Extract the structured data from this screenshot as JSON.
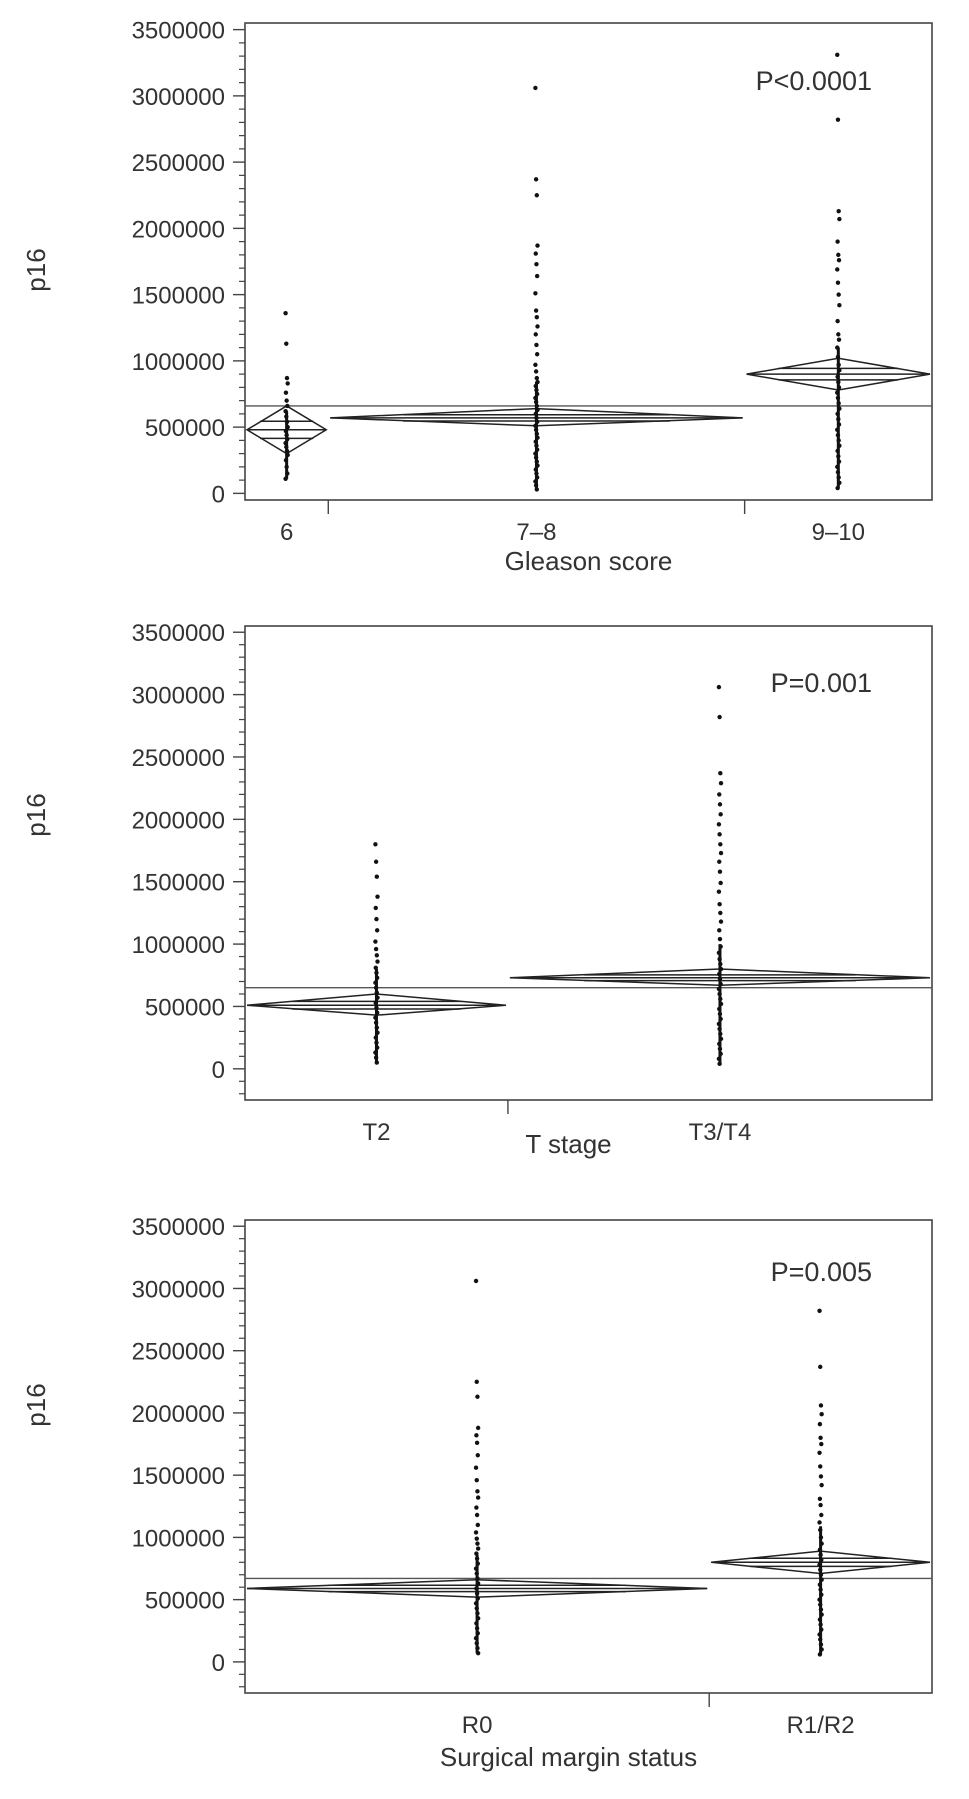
{
  "chart_data": [
    {
      "type": "scatter",
      "subtype": "one-way means diamonds with jittered points",
      "xlabel": "Gleason score",
      "ylabel": "p16",
      "ylim": [
        -50000,
        3550000
      ],
      "yticks": [
        0,
        500000,
        1000000,
        1500000,
        2000000,
        2500000,
        3000000,
        3500000
      ],
      "yticklabels": [
        "0",
        "500000",
        "1000000",
        "1500000",
        "2000000",
        "2500000",
        "3000000",
        "3500000"
      ],
      "annotation": "P<0.0001",
      "grand_mean": 660000,
      "categories": [
        "6",
        "7–8",
        "9–10"
      ],
      "category_widths": [
        0.2,
        1.0,
        0.45
      ],
      "groups": [
        {
          "name": "6",
          "mean": 480000,
          "ci": [
            300000,
            660000
          ],
          "values": [
            1360000,
            1130000,
            870000,
            830000,
            760000,
            700000,
            660000,
            620000,
            580000,
            540000,
            500000,
            470000,
            440000,
            410000,
            380000,
            350000,
            320000,
            290000,
            250000,
            200000,
            150000,
            110000
          ]
        },
        {
          "name": "7–8",
          "mean": 570000,
          "ci": [
            510000,
            640000
          ],
          "values": [
            3060000,
            2370000,
            2250000,
            1870000,
            1810000,
            1730000,
            1640000,
            1510000,
            1380000,
            1330000,
            1260000,
            1200000,
            1120000,
            1050000,
            970000,
            920000,
            870000,
            840000,
            810000,
            780000,
            750000,
            720000,
            690000,
            660000,
            630000,
            600000,
            570000,
            540000,
            510000,
            480000,
            450000,
            420000,
            390000,
            360000,
            330000,
            300000,
            270000,
            240000,
            210000,
            180000,
            150000,
            120000,
            90000,
            60000,
            30000
          ]
        },
        {
          "name": "9–10",
          "mean": 900000,
          "ci": [
            780000,
            1020000
          ],
          "values": [
            3310000,
            2820000,
            2130000,
            2070000,
            1900000,
            1800000,
            1760000,
            1690000,
            1590000,
            1500000,
            1420000,
            1300000,
            1200000,
            1160000,
            1100000,
            1030000,
            970000,
            930000,
            880000,
            840000,
            800000,
            760000,
            720000,
            680000,
            640000,
            600000,
            560000,
            520000,
            480000,
            440000,
            400000,
            360000,
            320000,
            280000,
            240000,
            200000,
            160000,
            120000,
            80000,
            40000
          ]
        }
      ]
    },
    {
      "type": "scatter",
      "subtype": "one-way means diamonds with jittered points",
      "xlabel": "T stage",
      "ylabel": "p16",
      "ylim": [
        -250000,
        3550000
      ],
      "yticks": [
        0,
        500000,
        1000000,
        1500000,
        2000000,
        2500000,
        3000000,
        3500000
      ],
      "yticklabels": [
        "0",
        "500000",
        "1000000",
        "1500000",
        "2000000",
        "2500000",
        "3000000",
        "3500000"
      ],
      "annotation": "P=0.001",
      "grand_mean": 650000,
      "categories": [
        "T2",
        "T3/T4"
      ],
      "category_widths": [
        0.62,
        1.0
      ],
      "groups": [
        {
          "name": "T2",
          "mean": 510000,
          "ci": [
            430000,
            600000
          ],
          "values": [
            1800000,
            1660000,
            1540000,
            1380000,
            1290000,
            1200000,
            1110000,
            1020000,
            960000,
            910000,
            860000,
            810000,
            770000,
            730000,
            690000,
            650000,
            610000,
            570000,
            530000,
            490000,
            450000,
            410000,
            370000,
            330000,
            290000,
            250000,
            210000,
            170000,
            130000,
            90000,
            50000
          ]
        },
        {
          "name": "T3/T4",
          "mean": 730000,
          "ci": [
            670000,
            800000
          ],
          "values": [
            3060000,
            2820000,
            2370000,
            2290000,
            2200000,
            2120000,
            2040000,
            1960000,
            1880000,
            1800000,
            1730000,
            1660000,
            1580000,
            1490000,
            1420000,
            1320000,
            1250000,
            1180000,
            1110000,
            1040000,
            980000,
            930000,
            880000,
            840000,
            800000,
            760000,
            720000,
            680000,
            640000,
            600000,
            560000,
            520000,
            480000,
            440000,
            400000,
            360000,
            320000,
            280000,
            240000,
            200000,
            160000,
            120000,
            80000,
            40000
          ]
        }
      ]
    },
    {
      "type": "scatter",
      "subtype": "one-way means diamonds with jittered points",
      "xlabel": "Surgical margin status",
      "ylabel": "p16",
      "ylim": [
        -250000,
        3550000
      ],
      "yticks": [
        0,
        500000,
        1000000,
        1500000,
        2000000,
        2500000,
        3000000,
        3500000
      ],
      "yticklabels": [
        "0",
        "500000",
        "1000000",
        "1500000",
        "2000000",
        "2500000",
        "3000000",
        "3500000"
      ],
      "annotation": "P=0.005",
      "grand_mean": 670000,
      "categories": [
        "R0",
        "R1/R2"
      ],
      "category_widths": [
        1.0,
        0.48
      ],
      "groups": [
        {
          "name": "R0",
          "mean": 590000,
          "ci": [
            520000,
            660000
          ],
          "values": [
            3060000,
            2250000,
            2130000,
            1880000,
            1820000,
            1760000,
            1660000,
            1560000,
            1460000,
            1370000,
            1320000,
            1240000,
            1180000,
            1100000,
            1040000,
            990000,
            950000,
            910000,
            870000,
            830000,
            790000,
            750000,
            710000,
            670000,
            630000,
            590000,
            550000,
            510000,
            470000,
            430000,
            390000,
            350000,
            310000,
            270000,
            230000,
            190000,
            150000,
            110000,
            70000
          ]
        },
        {
          "name": "R1/R2",
          "mean": 800000,
          "ci": [
            710000,
            890000
          ],
          "values": [
            2820000,
            2370000,
            2060000,
            1990000,
            1910000,
            1800000,
            1750000,
            1680000,
            1570000,
            1490000,
            1420000,
            1310000,
            1260000,
            1180000,
            1120000,
            1060000,
            1000000,
            950000,
            900000,
            860000,
            820000,
            780000,
            740000,
            700000,
            660000,
            620000,
            580000,
            540000,
            500000,
            460000,
            420000,
            380000,
            340000,
            300000,
            260000,
            220000,
            180000,
            140000,
            100000,
            60000
          ]
        }
      ]
    }
  ]
}
